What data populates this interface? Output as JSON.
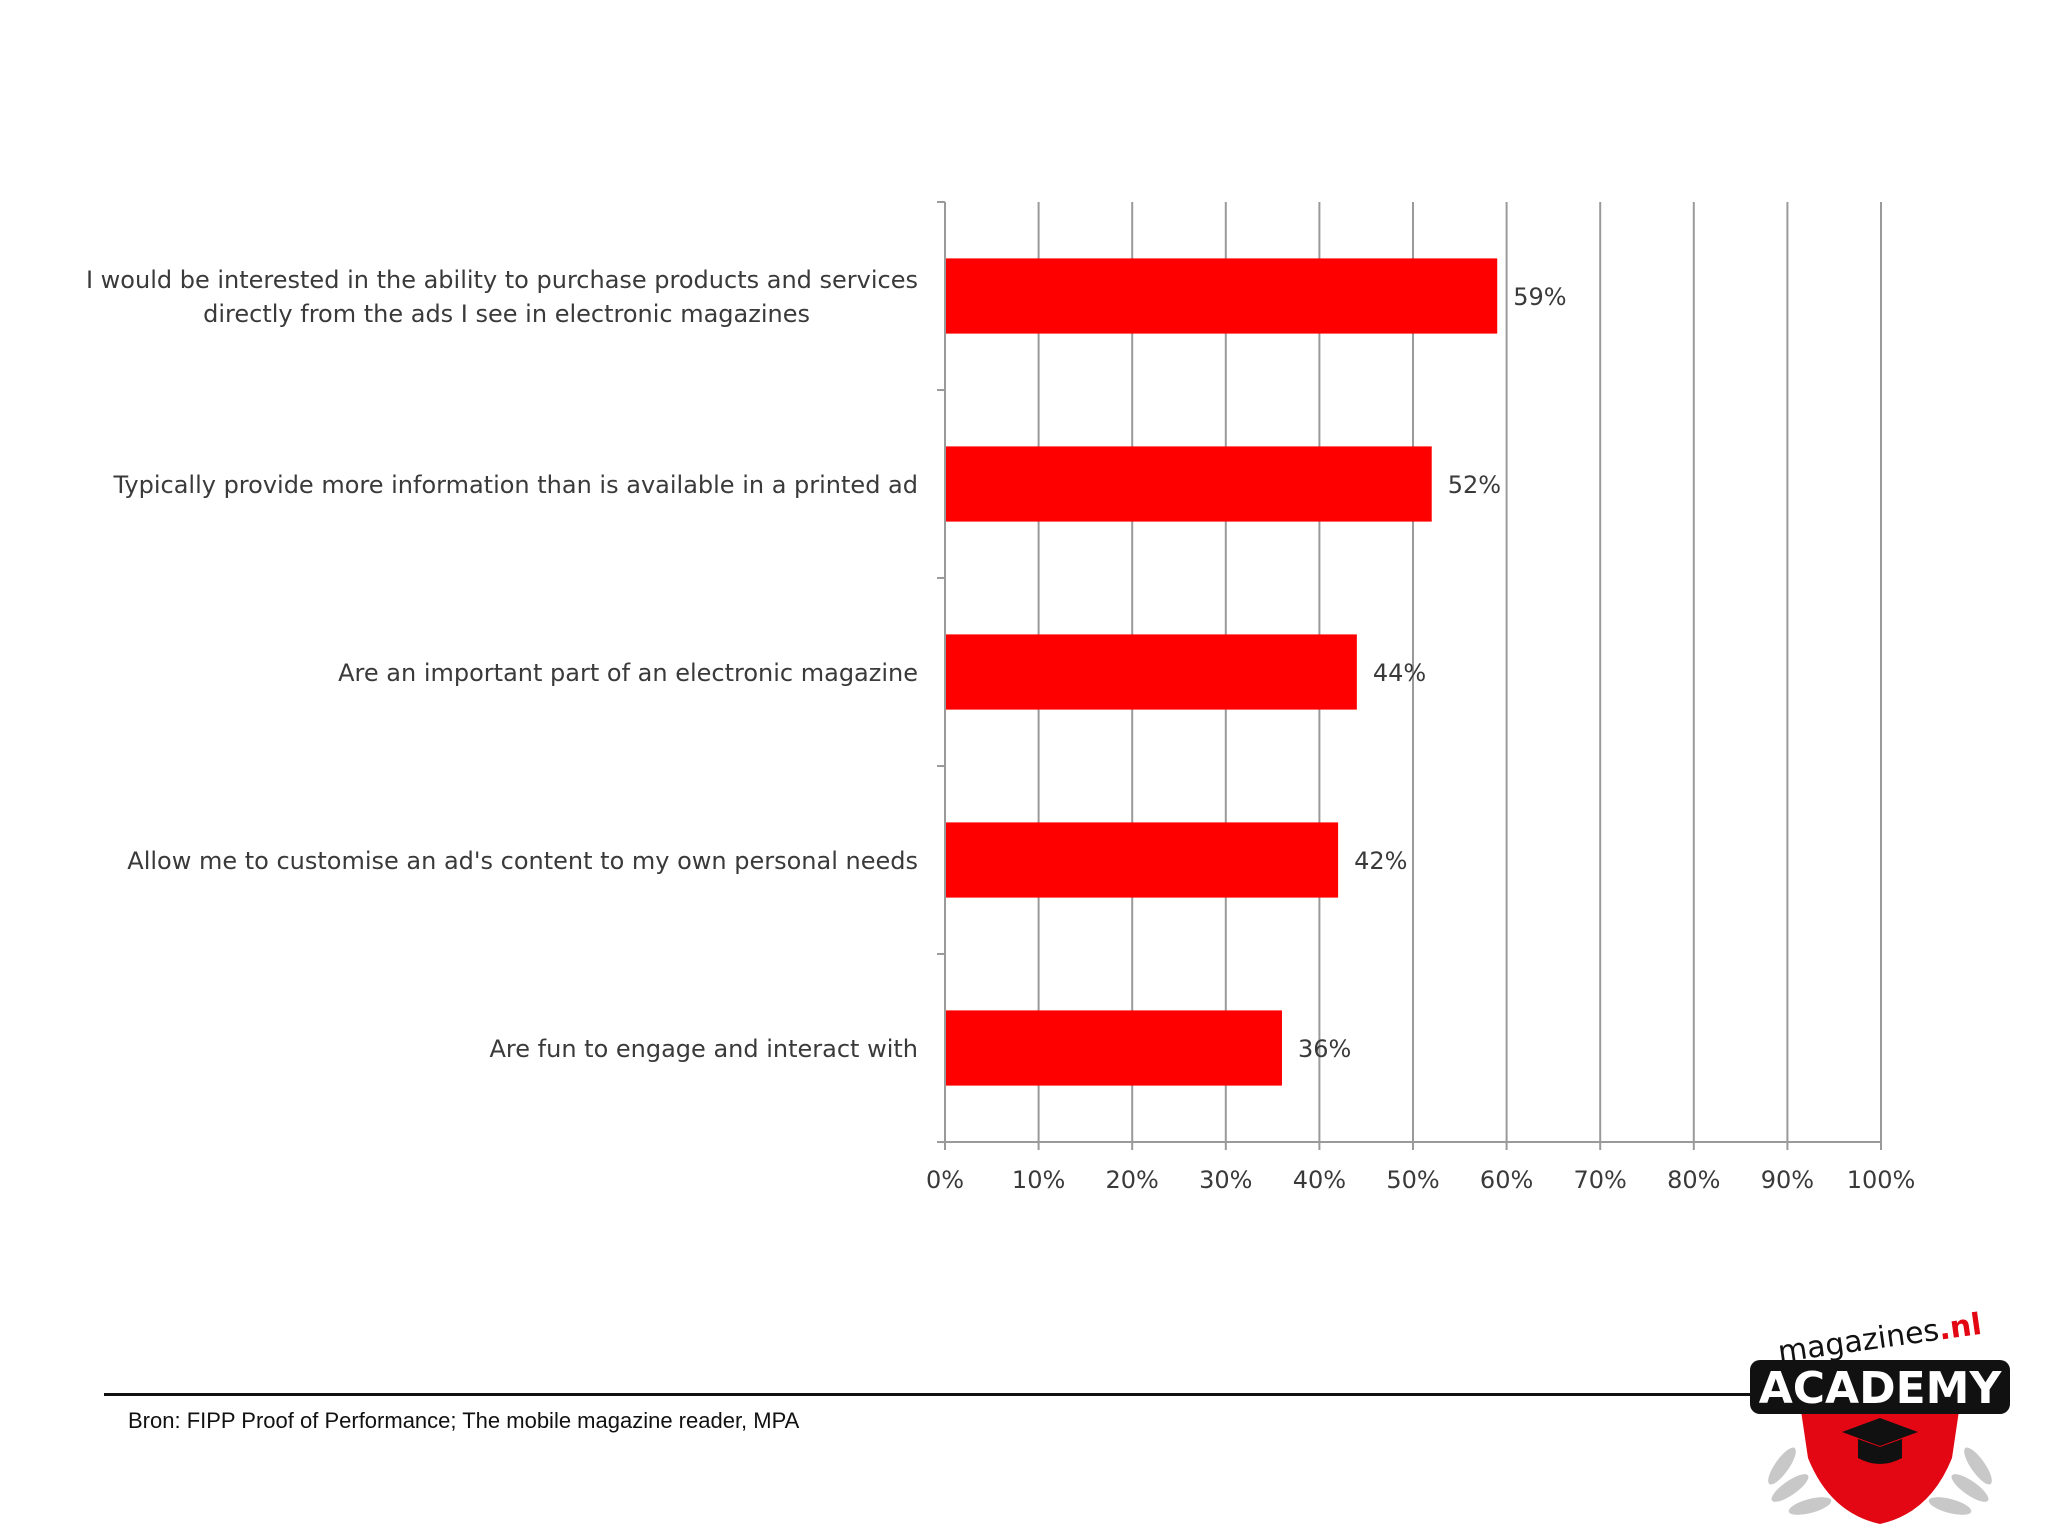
{
  "chart_data": {
    "type": "bar",
    "orientation": "horizontal",
    "categories": [
      [
        "I would be interested in the ability to purchase products and services",
        "directly from the ads I see in electronic magazines"
      ],
      [
        "Typically provide more information than is available in a printed ad"
      ],
      [
        "Are an important part of an electronic magazine"
      ],
      [
        "Allow me to customise an ad's content to my own personal needs"
      ],
      [
        "Are fun to engage and interact with"
      ]
    ],
    "values": [
      59,
      52,
      44,
      42,
      36
    ],
    "data_labels": [
      "59%",
      "52%",
      "44%",
      "42%",
      "36%"
    ],
    "xlim": [
      0,
      100
    ],
    "xticks": [
      0,
      10,
      20,
      30,
      40,
      50,
      60,
      70,
      80,
      90,
      100
    ],
    "xtick_labels": [
      "0%",
      "10%",
      "20%",
      "30%",
      "40%",
      "50%",
      "60%",
      "70%",
      "80%",
      "90%",
      "100%"
    ],
    "grid": "vertical",
    "bar_color": "#ff0000",
    "grid_color": "#9a9a9a",
    "legend": "none"
  },
  "footer": {
    "source": "Bron: FIPP Proof of Performance; The mobile magazine reader, MPA"
  },
  "logo": {
    "text_top": "magazines",
    "text_top_suffix": ".nl",
    "text_main": "ACADEMY",
    "brand_red": "#e30613"
  }
}
